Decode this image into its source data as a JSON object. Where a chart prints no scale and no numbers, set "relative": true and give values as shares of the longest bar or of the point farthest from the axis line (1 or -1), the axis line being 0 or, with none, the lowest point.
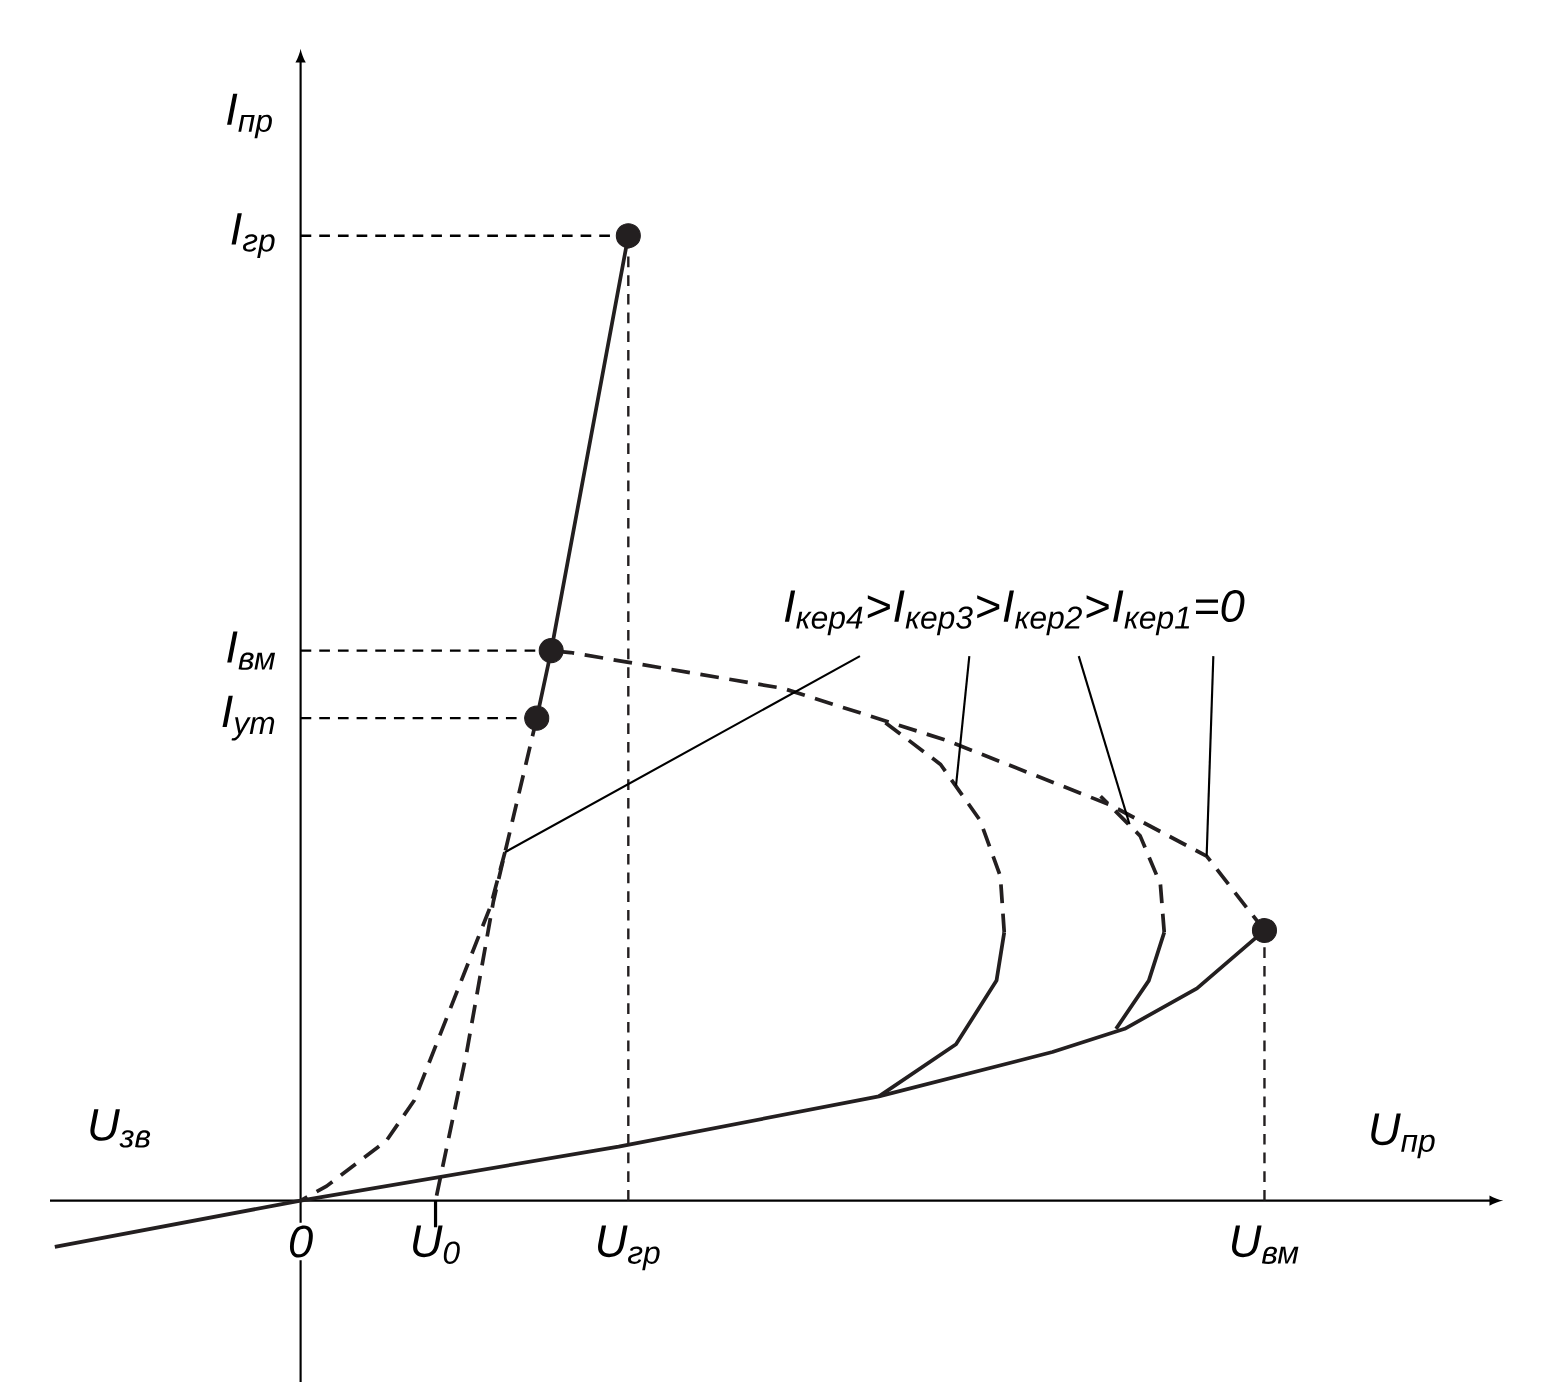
{
  "chart_data": {
    "type": "line",
    "relative": true,
    "xlabel": "U$_{пр}$",
    "ylabel": "I$_{пр}$",
    "xlim": [
      -0.26,
      1.234
    ],
    "xticks": [
      0,
      {
        "value": 0.14,
        "label": "U$_{0}$"
      },
      {
        "value": 0.34,
        "label": "U$_{гр}$"
      },
      {
        "value": 1.0,
        "label": "U$_{вм}$"
      }
    ],
    "annotations": [
      "U$_{зв}$",
      {
        "text": "I$_{гр}$",
        "x": 0.34,
        "y": 1.0
      },
      {
        "text": "I$_{вм}$",
        "x": 0.26,
        "y": 0.57
      },
      {
        "text": "I$_{ут}$",
        "x": 0.245,
        "y": 0.5
      },
      {
        "text": "I$_{кер4}$>",
        "x": 0.212,
        "y": 0.361
      },
      {
        "text": "I$_{кер3}$>",
        "x": 0.68,
        "y": 0.43
      },
      {
        "text": "I$_{кер2}$>",
        "x": 0.86,
        "y": 0.39
      },
      {
        "text": "I$_{кер1}$=0",
        "x": 0.94,
        "y": 0.357
      }
    ],
    "series": [
      {
        "type": "line",
        "line_style": "solid",
        "color": "#231f20",
        "x": [
          -0.255,
          0,
          0.33,
          0.6,
          0.78,
          0.855,
          0.93,
          1.0
        ],
        "values": [
          -0.048,
          0,
          0.056,
          0.108,
          0.154,
          0.178,
          0.22,
          0.28
        ]
      },
      {
        "type": "line",
        "line_style": "dashed",
        "color": "#231f20",
        "x": [
          1.0,
          0.94,
          0.84,
          0.67,
          0.5,
          0.28,
          0.26
        ],
        "values": [
          0.28,
          0.357,
          0.41,
          0.477,
          0.531,
          0.568,
          0.57
        ]
      },
      {
        "type": "line",
        "line_style": "solid",
        "color": "#231f20",
        "x": [
          0.245,
          0.26,
          0.34
        ],
        "values": [
          0.5,
          0.57,
          1.0
        ]
      },
      {
        "type": "line",
        "line_style": "dashed",
        "color": "#231f20",
        "x": [
          0.245,
          0.2,
          0.172,
          0.14
        ],
        "values": [
          0.5,
          0.31,
          0.152,
          0
        ]
      },
      {
        "type": "line",
        "line_style": "dashed",
        "color": "#231f20",
        "x": [
          0.212,
          0.197,
          0.118,
          0.089,
          0.027,
          0.0
        ],
        "values": [
          0.361,
          0.305,
          0.104,
          0.062,
          0.015,
          0.0
        ]
      },
      {
        "type": "line",
        "line_style": "solid",
        "color": "#231f20",
        "x": [
          0.6,
          0.68,
          0.722,
          0.73
        ],
        "values": [
          0.108,
          0.162,
          0.228,
          0.278
        ]
      },
      {
        "type": "line",
        "line_style": "dashed",
        "color": "#231f20",
        "x": [
          0.73,
          0.726,
          0.705,
          0.664,
          0.598
        ],
        "values": [
          0.278,
          0.336,
          0.394,
          0.452,
          0.502
        ]
      },
      {
        "type": "line",
        "line_style": "solid",
        "color": "#231f20",
        "x": [
          0.846,
          0.88,
          0.896
        ],
        "values": [
          0.178,
          0.228,
          0.278
        ]
      },
      {
        "type": "line",
        "line_style": "dashed",
        "color": "#231f20",
        "x": [
          0.896,
          0.892,
          0.871,
          0.83
        ],
        "values": [
          0.278,
          0.328,
          0.378,
          0.419
        ]
      },
      {
        "type": "line",
        "line_style": "dotted",
        "color": "#231f20",
        "x": [
          0.34,
          0.34
        ],
        "values": [
          0,
          1.0
        ]
      },
      {
        "type": "line",
        "line_style": "dotted",
        "color": "#231f20",
        "x": [
          1.0,
          1.0
        ],
        "values": [
          0,
          0.28
        ]
      },
      {
        "type": "scatter",
        "color": "#231f20",
        "x": [
          0.34,
          0.26,
          0.245,
          1.0
        ],
        "values": [
          1.0,
          0.57,
          0.5,
          0.28
        ]
      }
    ]
  }
}
